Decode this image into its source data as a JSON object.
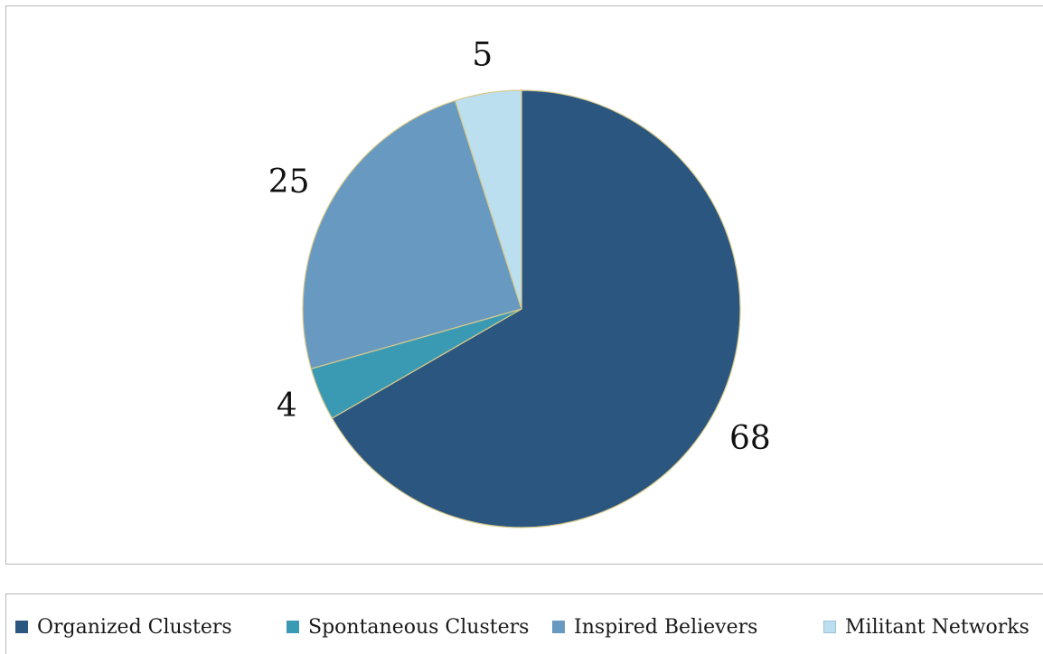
{
  "chart_data": {
    "type": "pie",
    "title": "",
    "slice_border_color": "#d8c98a",
    "slices": [
      {
        "label": "Organized Clusters",
        "value": 68,
        "data_label": "68",
        "color": "#2b5680"
      },
      {
        "label": "Spontaneous Clusters",
        "value": 4,
        "data_label": "4",
        "color": "#3b9ab3"
      },
      {
        "label": "Inspired Believers",
        "value": 25,
        "data_label": "25",
        "color": "#6899c1"
      },
      {
        "label": "Militant Networks",
        "value": 5,
        "data_label": "5",
        "color": "#bcdff0"
      }
    ],
    "legend_placement": "bottom"
  }
}
